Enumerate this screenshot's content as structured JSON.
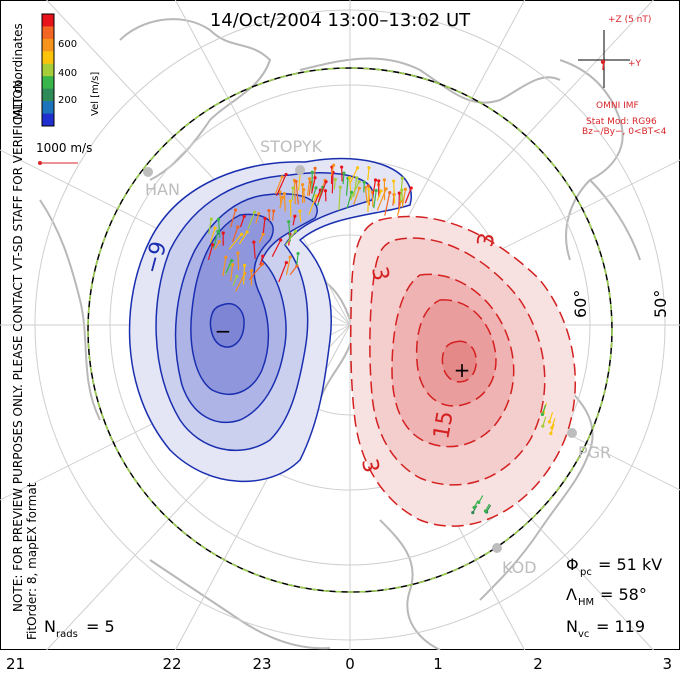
{
  "title": "14/Oct/2004 13:00–13:02 UT",
  "colorbar": {
    "ticks": [
      "600",
      "400",
      "200"
    ],
    "label": "Vel [m/s]",
    "colors": [
      "#e8141b",
      "#f26522",
      "#f7941d",
      "#fcc30b",
      "#a6ce39",
      "#39b54a",
      "#2e8b57",
      "#1c75bc",
      "#1f2fd0"
    ]
  },
  "coord_label": "MLT coordinates",
  "ref_vector": {
    "label": "1000 m/s",
    "color": "#d9262a"
  },
  "side_note": "NOTE: FOR PREVIEW PURPOSES ONLY. PLEASE CONTACT VT-SD STAFF FOR VERIFICATION.",
  "fit_note": "FitOrder: 8, mapEX format",
  "imf": {
    "z_label": "+Z (5 nT)",
    "y_label": "+Y",
    "source": "OMNI IMF",
    "stat_mod": "Stat Mod: RG96",
    "condition": "Bz−/By−, 0<BT<4",
    "color": "#d9262a"
  },
  "stations": [
    "STOPYK",
    "HAN",
    "PGR",
    "KOD"
  ],
  "contours": {
    "negative_label": "−9",
    "positive_labels": [
      "3",
      "3",
      "15",
      "3"
    ],
    "min_marker": "−",
    "max_marker": "+",
    "neg_color": "#1a2fb0",
    "pos_color": "#d42020"
  },
  "latitude_labels": [
    "60°",
    "50°"
  ],
  "mlt_ticks": [
    "21",
    "22",
    "23",
    "0",
    "1",
    "2",
    "3"
  ],
  "stats": {
    "phi_symbol": "Φ",
    "phi_sub": "pc",
    "phi_value": "= 51 kV",
    "lambda_symbol": "Λ",
    "lambda_sub": "HM",
    "lambda_value": "= 58°",
    "nvc_symbol": "N",
    "nvc_sub": "vc",
    "nvc_value": "= 119",
    "nrads_symbol": "N",
    "nrads_sub": "rads",
    "nrads_value": "= 5"
  }
}
